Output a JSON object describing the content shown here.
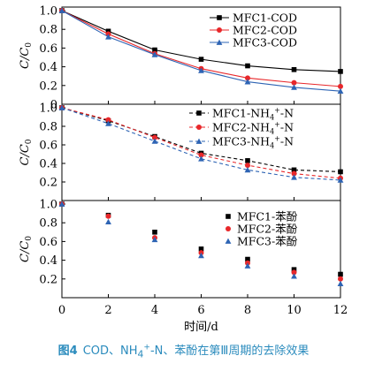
{
  "chart_data": [
    {
      "type": "line",
      "ylabel": "C/C0",
      "ylim": [
        0,
        1.0
      ],
      "yticks": [
        "1.0",
        "0.8",
        "0.6",
        "0.4",
        "0.2",
        "0"
      ],
      "xlim": [
        0,
        12
      ],
      "x": [
        0,
        2,
        4,
        6,
        8,
        10,
        12
      ],
      "line_style": "solid",
      "legend_position": "top-right",
      "series": [
        {
          "name": "MFC1-COD",
          "marker": "square",
          "values": [
            1.0,
            0.78,
            0.58,
            0.48,
            0.41,
            0.37,
            0.35
          ]
        },
        {
          "name": "MFC2-COD",
          "marker": "circle",
          "values": [
            1.0,
            0.75,
            0.54,
            0.38,
            0.28,
            0.23,
            0.19
          ]
        },
        {
          "name": "MFC3-COD",
          "marker": "triangle",
          "values": [
            1.0,
            0.72,
            0.53,
            0.36,
            0.24,
            0.18,
            0.14
          ]
        }
      ]
    },
    {
      "type": "line",
      "ylabel": "C/C0",
      "ylim": [
        0,
        1.0
      ],
      "yticks": [
        "1.0",
        "0.8",
        "0.6",
        "0.4",
        "0.2"
      ],
      "xlim": [
        0,
        12
      ],
      "x": [
        0,
        2,
        4,
        6,
        8,
        10,
        12
      ],
      "line_style": "dashed",
      "legend_position": "top-right",
      "series": [
        {
          "name": "MFC1-NH4+-N",
          "marker": "square",
          "values": [
            1.0,
            0.86,
            0.69,
            0.51,
            0.43,
            0.33,
            0.31
          ]
        },
        {
          "name": "MFC2-NH4+-N",
          "marker": "circle",
          "values": [
            1.0,
            0.87,
            0.68,
            0.49,
            0.38,
            0.29,
            0.24
          ]
        },
        {
          "name": "MFC3-NH4+-N",
          "marker": "triangle",
          "values": [
            1.0,
            0.83,
            0.64,
            0.45,
            0.33,
            0.25,
            0.22
          ]
        }
      ]
    },
    {
      "type": "scatter",
      "ylabel": "C/C0",
      "ylim": [
        0,
        1.0
      ],
      "yticks": [
        "1.0",
        "0.8",
        "0.6",
        "0.4",
        "0.2"
      ],
      "xlim": [
        0,
        12
      ],
      "x": [
        0,
        2,
        4,
        6,
        8,
        10,
        12
      ],
      "xticks": [
        "0",
        "2",
        "4",
        "6",
        "8",
        "10",
        "12"
      ],
      "xlabel": "时间/d",
      "legend_position": "top-right",
      "series": [
        {
          "name": "MFC1-苯酚",
          "marker": "square",
          "values": [
            1.0,
            0.88,
            0.7,
            0.52,
            0.41,
            0.3,
            0.25
          ]
        },
        {
          "name": "MFC2-苯酚",
          "marker": "circle",
          "values": [
            1.0,
            0.87,
            0.64,
            0.48,
            0.37,
            0.27,
            0.2
          ]
        },
        {
          "name": "MFC3-苯酚",
          "marker": "triangle",
          "values": [
            1.0,
            0.81,
            0.62,
            0.45,
            0.34,
            0.23,
            0.15
          ]
        }
      ]
    }
  ],
  "colors": {
    "MFC1": "#000000",
    "MFC2": "#e8272a",
    "MFC3": "#2e64b4",
    "caption": "#2a8bbd"
  },
  "caption": {
    "number": "图4",
    "before": "COD、NH",
    "sub": "4",
    "sup": "+",
    "after": "-N、苯酚在第Ⅲ周期的去除效果"
  }
}
